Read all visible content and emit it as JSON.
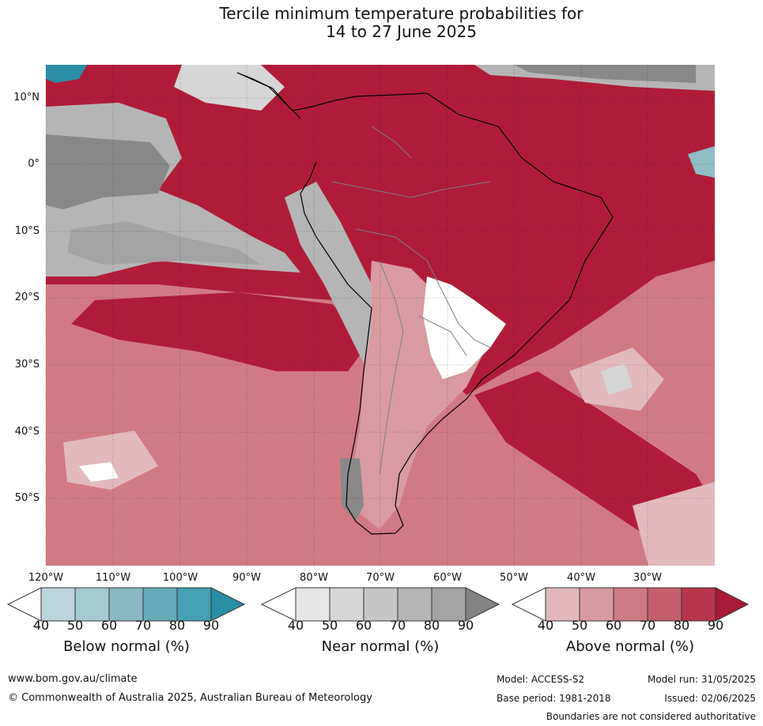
{
  "title": {
    "line1": "Tercile minimum temperature probabilities for",
    "line2": "14 to 27 June 2025"
  },
  "map": {
    "region": "South America and surrounding oceans",
    "lat_labels": [
      "10°N",
      "0°",
      "10°S",
      "20°S",
      "30°S",
      "40°S",
      "50°S"
    ],
    "lon_labels": [
      "120°W",
      "110°W",
      "100°W",
      "90°W",
      "80°W",
      "70°W",
      "60°W",
      "50°W",
      "40°W",
      "30°W"
    ],
    "colors": {
      "above_90": "#b01c38",
      "above_80": "#c33a4f",
      "above_70": "#cc5d6b",
      "above_60": "#d27a84",
      "above_50": "#d99aa1",
      "above_40": "#e2babd",
      "near_90": "#888888",
      "near_70": "#b5b5b5",
      "near_50": "#d6d6d6",
      "below_90": "#2b8ea6",
      "below_60": "#8fbcc6",
      "white": "#ffffff"
    }
  },
  "colorbars": [
    {
      "title": "Below normal (%)",
      "ticks": [
        "40",
        "50",
        "60",
        "70",
        "80",
        "90"
      ],
      "colors": [
        "#ffffff",
        "#bcd5db",
        "#a5c9d1",
        "#88b9c4",
        "#66a9b8",
        "#44a0b2",
        "#2a8ea6"
      ]
    },
    {
      "title": "Near normal (%)",
      "ticks": [
        "40",
        "50",
        "60",
        "70",
        "80",
        "90"
      ],
      "colors": [
        "#ffffff",
        "#e6e6e6",
        "#d6d6d6",
        "#c6c6c6",
        "#b5b5b5",
        "#a3a3a3",
        "#838383"
      ]
    },
    {
      "title": "Above normal (%)",
      "ticks": [
        "40",
        "50",
        "60",
        "70",
        "80",
        "90"
      ],
      "colors": [
        "#ffffff",
        "#e2b8bc",
        "#d79aa1",
        "#ce7a83",
        "#c55e6b",
        "#b9354b",
        "#ab1a37"
      ]
    }
  ],
  "footer": {
    "url": "www.bom.gov.au/climate",
    "copyright": "© Commonwealth of Australia 2025, Australian Bureau of Meteorology",
    "model": "Model: ACCESS-S2",
    "model_run": "Model run: 31/05/2025",
    "base_period": "Base period: 1981-2018",
    "issued": "Issued: 02/06/2025",
    "disclaimer": "Boundaries are not considered authoritative"
  }
}
